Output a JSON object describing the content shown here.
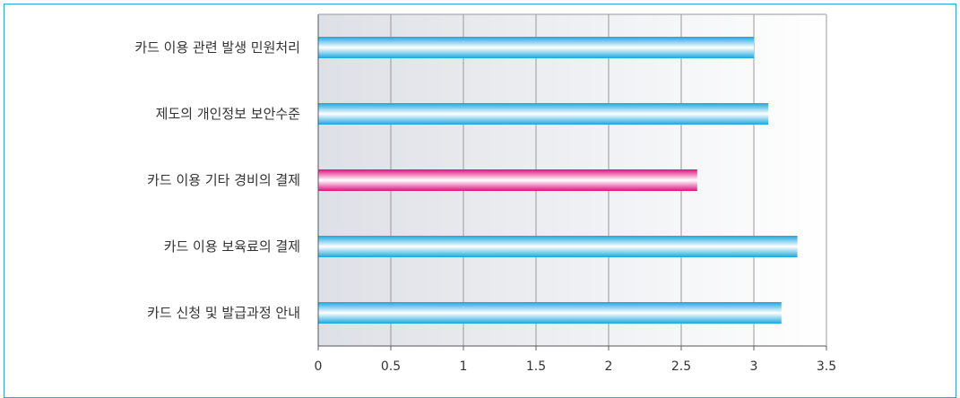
{
  "chart_data": {
    "type": "bar",
    "orientation": "horizontal",
    "categories": [
      "카드 이용 관련 발생 민원처리",
      "제도의 개인정보 보안수준",
      "카드 이용 기타 경비의 결제",
      "카드 이용 보육료의 결제",
      "카드 신청 및 발급과정 안내"
    ],
    "values": [
      3.0,
      3.1,
      2.61,
      3.3,
      3.19
    ],
    "highlight_index": 2,
    "xlim": [
      0,
      3.5
    ],
    "ticks": [
      0,
      0.5,
      1,
      1.5,
      2,
      2.5,
      3,
      3.5
    ],
    "tick_labels": [
      "0",
      "0.5",
      "1",
      "1.5",
      "2",
      "2.5",
      "3",
      "3.5"
    ],
    "grid": true,
    "title": "",
    "xlabel": "",
    "ylabel": "",
    "colors": {
      "bar": "#20aee6",
      "highlight": "#e6198a",
      "frame": "#2aa7d8",
      "grid": "#9a9a9a"
    }
  }
}
